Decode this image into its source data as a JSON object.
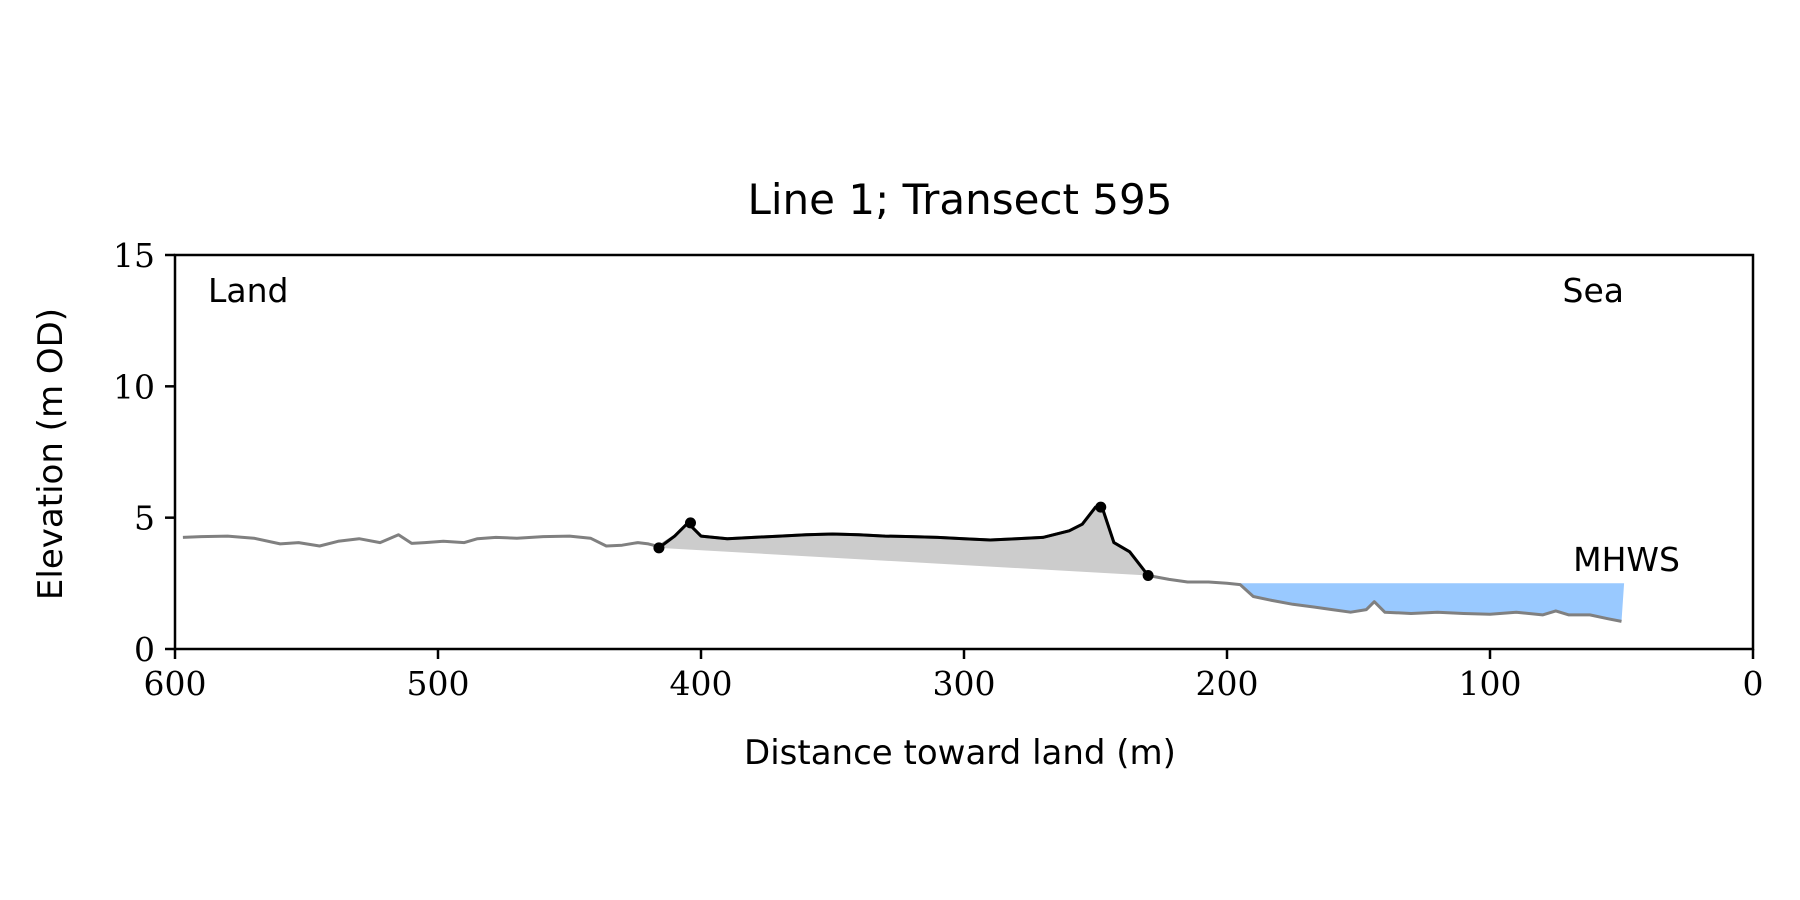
{
  "chart_data": {
    "type": "line",
    "title": "Line 1; Transect 595",
    "xlabel": "Distance toward land (m)",
    "ylabel": "Elevation (m OD)",
    "xlim": [
      600,
      0
    ],
    "ylim": [
      0,
      15
    ],
    "x_ticks": [
      600,
      500,
      400,
      300,
      200,
      100,
      0
    ],
    "y_ticks": [
      0,
      5,
      10,
      15
    ],
    "grid": false,
    "annotations": {
      "land": "Land",
      "sea": "Sea",
      "mhws": "MHWS"
    },
    "mhws_level": 2.5,
    "mhws_extent": [
      197,
      49
    ],
    "colors": {
      "profile": "#808080",
      "dune": "#000000",
      "dune_fill": "#cccccc",
      "water": "#99c9ff",
      "mhws_text": "#6a9ccc"
    },
    "series": [
      {
        "role": "profile",
        "x": [
          597,
          590,
          580,
          570,
          560,
          553,
          545,
          538,
          530,
          522,
          515,
          510,
          505,
          498,
          490,
          485,
          478,
          470,
          460,
          450,
          442,
          436,
          430,
          424,
          420,
          416,
          410,
          405,
          400,
          390,
          380,
          370,
          360,
          350,
          340,
          330,
          320,
          310,
          300,
          290,
          280,
          270,
          260,
          255,
          250,
          247,
          243,
          237,
          230,
          222,
          215,
          207,
          200,
          195,
          190,
          183,
          175,
          167,
          160,
          153,
          147,
          144,
          140,
          130,
          120,
          110,
          100,
          90,
          80,
          75,
          70,
          62,
          55,
          50
        ],
        "y": [
          4.25,
          4.28,
          4.3,
          4.22,
          4.0,
          4.05,
          3.92,
          4.1,
          4.2,
          4.05,
          4.35,
          4.02,
          4.05,
          4.1,
          4.05,
          4.2,
          4.25,
          4.22,
          4.28,
          4.3,
          4.22,
          3.92,
          3.95,
          4.05,
          4.0,
          3.9,
          4.3,
          4.8,
          4.3,
          4.2,
          4.25,
          4.3,
          4.35,
          4.38,
          4.35,
          4.3,
          4.28,
          4.25,
          4.2,
          4.15,
          4.2,
          4.25,
          4.5,
          4.75,
          5.4,
          5.25,
          4.05,
          3.7,
          2.8,
          2.65,
          2.55,
          2.55,
          2.5,
          2.45,
          2.0,
          1.85,
          1.7,
          1.6,
          1.5,
          1.4,
          1.5,
          1.8,
          1.4,
          1.35,
          1.4,
          1.35,
          1.32,
          1.4,
          1.3,
          1.45,
          1.3,
          1.3,
          1.15,
          1.05
        ]
      },
      {
        "role": "dune",
        "x": [
          416,
          410,
          405,
          400,
          390,
          380,
          370,
          360,
          350,
          340,
          330,
          320,
          310,
          300,
          290,
          280,
          270,
          260,
          255,
          250,
          247,
          243,
          237,
          230
        ],
        "y": [
          3.85,
          4.3,
          4.8,
          4.3,
          4.2,
          4.25,
          4.3,
          4.35,
          4.38,
          4.35,
          4.3,
          4.28,
          4.25,
          4.2,
          4.15,
          4.2,
          4.25,
          4.5,
          4.75,
          5.4,
          5.25,
          4.05,
          3.7,
          2.8
        ]
      }
    ],
    "markers": {
      "x": [
        416,
        404,
        248,
        230
      ],
      "y": [
        3.85,
        4.8,
        5.4,
        2.8
      ]
    }
  }
}
